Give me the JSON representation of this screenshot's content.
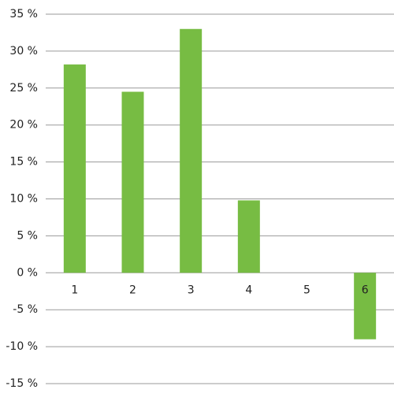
{
  "chart_data": {
    "type": "bar",
    "categories": [
      "1",
      "2",
      "3",
      "4",
      "5",
      "6"
    ],
    "values": [
      28.2,
      24.5,
      33,
      9.8,
      0,
      -9
    ],
    "color": "#77bc43",
    "ylim": [
      -15,
      35
    ],
    "yticks": [
      {
        "value": -15,
        "label": "-15 %"
      },
      {
        "value": -10,
        "label": "-10 %"
      },
      {
        "value": -5,
        "label": "-5 %"
      },
      {
        "value": 0,
        "label": "0 %"
      },
      {
        "value": 5,
        "label": "5 %"
      },
      {
        "value": 10,
        "label": "10 %"
      },
      {
        "value": 15,
        "label": "15 %"
      },
      {
        "value": 20,
        "label": "20 %"
      },
      {
        "value": 25,
        "label": "25 %"
      },
      {
        "value": 30,
        "label": "30 %"
      },
      {
        "value": 35,
        "label": "35 %"
      }
    ],
    "grid": true
  }
}
